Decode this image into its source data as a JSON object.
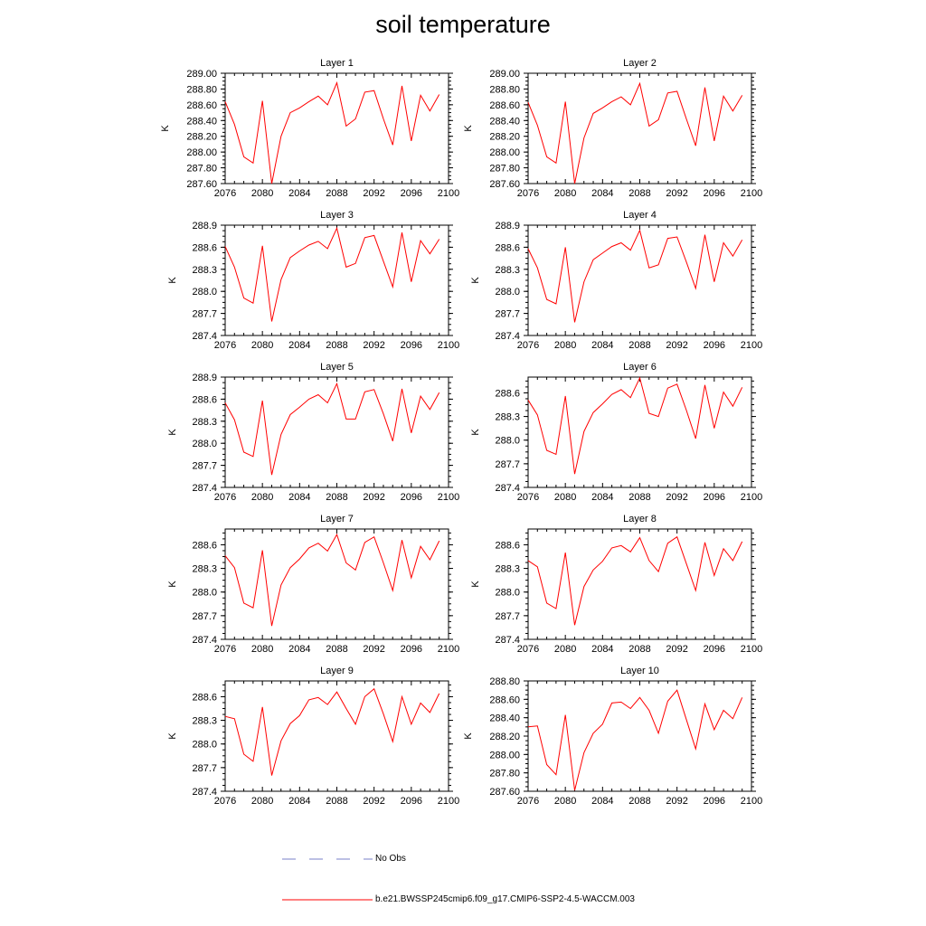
{
  "title": "soil temperature",
  "colors": {
    "series": "#ff0000",
    "obs": "#7a80c8",
    "axis": "#000000"
  },
  "legend": {
    "obs_label": "No Obs",
    "model_label": "b.e21.BWSSP245cmip6.f09_g17.CMIP6-SSP2-4.5-WACCM.003"
  },
  "chart_data": [
    {
      "type": "line",
      "title": "Layer 1",
      "xlabel": "",
      "ylabel": "K",
      "xlim": [
        2076,
        2100
      ],
      "ylim": [
        287.6,
        289.0
      ],
      "xticks": [
        "2076",
        "2080",
        "2084",
        "2088",
        "2092",
        "2096",
        "2100"
      ],
      "yticks": [
        "287.60",
        "287.80",
        "288.00",
        "288.20",
        "288.40",
        "288.60",
        "288.80",
        "289.00"
      ],
      "series": [
        {
          "x": [
            2076,
            2077,
            2078,
            2079,
            2080,
            2081,
            2082,
            2083,
            2084,
            2085,
            2086,
            2087,
            2088,
            2089,
            2090,
            2091,
            2092,
            2093,
            2094,
            2095,
            2096,
            2097,
            2098,
            2099
          ],
          "values": [
            288.64,
            288.35,
            287.94,
            287.86,
            288.65,
            287.6,
            288.2,
            288.5,
            288.56,
            288.64,
            288.71,
            288.6,
            288.88,
            288.33,
            288.42,
            288.76,
            288.78,
            288.42,
            288.09,
            288.84,
            288.14,
            288.72,
            288.52,
            288.73
          ]
        }
      ]
    },
    {
      "type": "line",
      "title": "Layer 2",
      "xlabel": "",
      "ylabel": "K",
      "xlim": [
        2076,
        2100
      ],
      "ylim": [
        287.6,
        289.0
      ],
      "xticks": [
        "2076",
        "2080",
        "2084",
        "2088",
        "2092",
        "2096",
        "2100"
      ],
      "yticks": [
        "287.60",
        "287.80",
        "288.00",
        "288.20",
        "288.40",
        "288.60",
        "288.80",
        "289.00"
      ],
      "series": [
        {
          "x": [
            2076,
            2077,
            2078,
            2079,
            2080,
            2081,
            2082,
            2083,
            2084,
            2085,
            2086,
            2087,
            2088,
            2089,
            2090,
            2091,
            2092,
            2093,
            2094,
            2095,
            2096,
            2097,
            2098,
            2099
          ],
          "values": [
            288.63,
            288.34,
            287.94,
            287.86,
            288.64,
            287.6,
            288.18,
            288.49,
            288.56,
            288.64,
            288.7,
            288.6,
            288.87,
            288.33,
            288.41,
            288.75,
            288.77,
            288.42,
            288.08,
            288.82,
            288.14,
            288.71,
            288.52,
            288.72
          ]
        }
      ]
    },
    {
      "type": "line",
      "title": "Layer 3",
      "xlabel": "",
      "ylabel": "K",
      "xlim": [
        2076,
        2100
      ],
      "ylim": [
        287.4,
        288.9
      ],
      "xticks": [
        "2076",
        "2080",
        "2084",
        "2088",
        "2092",
        "2096",
        "2100"
      ],
      "yticks": [
        "287.4",
        "287.7",
        "288.0",
        "288.3",
        "288.6",
        "288.9"
      ],
      "series": [
        {
          "x": [
            2076,
            2077,
            2078,
            2079,
            2080,
            2081,
            2082,
            2083,
            2084,
            2085,
            2086,
            2087,
            2088,
            2089,
            2090,
            2091,
            2092,
            2093,
            2094,
            2095,
            2096,
            2097,
            2098,
            2099
          ],
          "values": [
            288.61,
            288.33,
            287.91,
            287.84,
            288.62,
            287.59,
            288.16,
            288.46,
            288.55,
            288.63,
            288.68,
            288.58,
            288.86,
            288.33,
            288.38,
            288.73,
            288.76,
            288.41,
            288.06,
            288.8,
            288.13,
            288.69,
            288.51,
            288.71
          ]
        }
      ]
    },
    {
      "type": "line",
      "title": "Layer 4",
      "xlabel": "",
      "ylabel": "K",
      "xlim": [
        2076,
        2100
      ],
      "ylim": [
        287.4,
        288.9
      ],
      "xticks": [
        "2076",
        "2080",
        "2084",
        "2088",
        "2092",
        "2096",
        "2100"
      ],
      "yticks": [
        "287.4",
        "287.7",
        "288.0",
        "288.3",
        "288.6",
        "288.9"
      ],
      "series": [
        {
          "x": [
            2076,
            2077,
            2078,
            2079,
            2080,
            2081,
            2082,
            2083,
            2084,
            2085,
            2086,
            2087,
            2088,
            2089,
            2090,
            2091,
            2092,
            2093,
            2094,
            2095,
            2096,
            2097,
            2098,
            2099
          ],
          "values": [
            288.58,
            288.32,
            287.89,
            287.83,
            288.6,
            287.58,
            288.13,
            288.43,
            288.52,
            288.61,
            288.66,
            288.56,
            288.83,
            288.32,
            288.36,
            288.72,
            288.74,
            288.4,
            288.04,
            288.77,
            288.13,
            288.66,
            288.48,
            288.7
          ]
        }
      ]
    },
    {
      "type": "line",
      "title": "Layer 5",
      "xlabel": "",
      "ylabel": "K",
      "xlim": [
        2076,
        2100
      ],
      "ylim": [
        287.4,
        288.9
      ],
      "xticks": [
        "2076",
        "2080",
        "2084",
        "2088",
        "2092",
        "2096",
        "2100"
      ],
      "yticks": [
        "287.4",
        "287.7",
        "288.0",
        "288.3",
        "288.6",
        "288.9"
      ],
      "series": [
        {
          "x": [
            2076,
            2077,
            2078,
            2079,
            2080,
            2081,
            2082,
            2083,
            2084,
            2085,
            2086,
            2087,
            2088,
            2089,
            2090,
            2091,
            2092,
            2093,
            2094,
            2095,
            2096,
            2097,
            2098,
            2099
          ],
          "values": [
            288.55,
            288.32,
            287.88,
            287.82,
            288.58,
            287.57,
            288.12,
            288.39,
            288.49,
            288.6,
            288.66,
            288.55,
            288.81,
            288.33,
            288.33,
            288.7,
            288.73,
            288.4,
            288.03,
            288.74,
            288.14,
            288.64,
            288.46,
            288.69
          ]
        }
      ]
    },
    {
      "type": "line",
      "title": "Layer 6",
      "xlabel": "",
      "ylabel": "K",
      "xlim": [
        2076,
        2100
      ],
      "ylim": [
        287.4,
        288.8
      ],
      "xticks": [
        "2076",
        "2080",
        "2084",
        "2088",
        "2092",
        "2096",
        "2100"
      ],
      "yticks": [
        "287.4",
        "287.7",
        "288.0",
        "288.3",
        "288.6"
      ],
      "series": [
        {
          "x": [
            2076,
            2077,
            2078,
            2079,
            2080,
            2081,
            2082,
            2083,
            2084,
            2085,
            2086,
            2087,
            2088,
            2089,
            2090,
            2091,
            2092,
            2093,
            2094,
            2095,
            2096,
            2097,
            2098,
            2099
          ],
          "values": [
            288.51,
            288.32,
            287.87,
            287.82,
            288.56,
            287.57,
            288.11,
            288.35,
            288.46,
            288.58,
            288.64,
            288.54,
            288.79,
            288.34,
            288.3,
            288.66,
            288.71,
            288.38,
            288.02,
            288.7,
            288.15,
            288.61,
            288.43,
            288.67
          ]
        }
      ]
    },
    {
      "type": "line",
      "title": "Layer 7",
      "xlabel": "",
      "ylabel": "K",
      "xlim": [
        2076,
        2100
      ],
      "ylim": [
        287.4,
        288.8
      ],
      "xticks": [
        "2076",
        "2080",
        "2084",
        "2088",
        "2092",
        "2096",
        "2100"
      ],
      "yticks": [
        "287.4",
        "287.7",
        "288.0",
        "288.3",
        "288.6"
      ],
      "series": [
        {
          "x": [
            2076,
            2077,
            2078,
            2079,
            2080,
            2081,
            2082,
            2083,
            2084,
            2085,
            2086,
            2087,
            2088,
            2089,
            2090,
            2091,
            2092,
            2093,
            2094,
            2095,
            2096,
            2097,
            2098,
            2099
          ],
          "values": [
            288.46,
            288.31,
            287.86,
            287.8,
            288.53,
            287.57,
            288.09,
            288.31,
            288.42,
            288.56,
            288.62,
            288.52,
            288.73,
            288.37,
            288.28,
            288.63,
            288.7,
            288.37,
            288.02,
            288.66,
            288.18,
            288.58,
            288.41,
            288.65
          ]
        }
      ]
    },
    {
      "type": "line",
      "title": "Layer 8",
      "xlabel": "",
      "ylabel": "K",
      "xlim": [
        2076,
        2100
      ],
      "ylim": [
        287.4,
        288.8
      ],
      "xticks": [
        "2076",
        "2080",
        "2084",
        "2088",
        "2092",
        "2096",
        "2100"
      ],
      "yticks": [
        "287.4",
        "287.7",
        "288.0",
        "288.3",
        "288.6"
      ],
      "series": [
        {
          "x": [
            2076,
            2077,
            2078,
            2079,
            2080,
            2081,
            2082,
            2083,
            2084,
            2085,
            2086,
            2087,
            2088,
            2089,
            2090,
            2091,
            2092,
            2093,
            2094,
            2095,
            2096,
            2097,
            2098,
            2099
          ],
          "values": [
            288.4,
            288.32,
            287.86,
            287.79,
            288.5,
            287.58,
            288.07,
            288.28,
            288.39,
            288.56,
            288.59,
            288.51,
            288.69,
            288.4,
            288.26,
            288.62,
            288.7,
            288.36,
            288.02,
            288.63,
            288.21,
            288.55,
            288.4,
            288.64
          ]
        }
      ]
    },
    {
      "type": "line",
      "title": "Layer 9",
      "xlabel": "",
      "ylabel": "K",
      "xlim": [
        2076,
        2100
      ],
      "ylim": [
        287.4,
        288.8
      ],
      "xticks": [
        "2076",
        "2080",
        "2084",
        "2088",
        "2092",
        "2096",
        "2100"
      ],
      "yticks": [
        "287.4",
        "287.7",
        "288.0",
        "288.3",
        "288.6"
      ],
      "series": [
        {
          "x": [
            2076,
            2077,
            2078,
            2079,
            2080,
            2081,
            2082,
            2083,
            2084,
            2085,
            2086,
            2087,
            2088,
            2089,
            2090,
            2091,
            2092,
            2093,
            2094,
            2095,
            2096,
            2097,
            2098,
            2099
          ],
          "values": [
            288.35,
            288.32,
            287.87,
            287.78,
            288.47,
            287.6,
            288.04,
            288.26,
            288.36,
            288.56,
            288.59,
            288.5,
            288.66,
            288.45,
            288.25,
            288.6,
            288.7,
            288.38,
            288.03,
            288.6,
            288.25,
            288.52,
            288.4,
            288.64
          ]
        }
      ]
    },
    {
      "type": "line",
      "title": "Layer 10",
      "xlabel": "",
      "ylabel": "K",
      "xlim": [
        2076,
        2100
      ],
      "ylim": [
        287.6,
        288.8
      ],
      "xticks": [
        "2076",
        "2080",
        "2084",
        "2088",
        "2092",
        "2096",
        "2100"
      ],
      "yticks": [
        "287.60",
        "287.80",
        "288.00",
        "288.20",
        "288.40",
        "288.60",
        "288.80"
      ],
      "series": [
        {
          "x": [
            2076,
            2077,
            2078,
            2079,
            2080,
            2081,
            2082,
            2083,
            2084,
            2085,
            2086,
            2087,
            2088,
            2089,
            2090,
            2091,
            2092,
            2093,
            2094,
            2095,
            2096,
            2097,
            2098,
            2099
          ],
          "values": [
            288.3,
            288.31,
            287.89,
            287.78,
            288.43,
            287.61,
            288.02,
            288.23,
            288.33,
            288.56,
            288.57,
            288.5,
            288.62,
            288.48,
            288.23,
            288.58,
            288.7,
            288.38,
            288.06,
            288.55,
            288.27,
            288.48,
            288.39,
            288.62
          ]
        }
      ]
    }
  ]
}
